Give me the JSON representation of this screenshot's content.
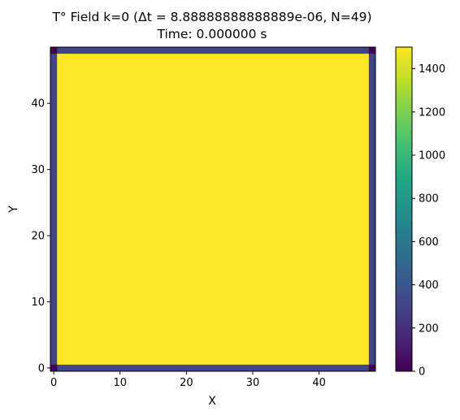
{
  "chart_data": {
    "type": "heatmap",
    "title": "T° Field k=0 (Δt = 8.88888888888889e-06, N=49)",
    "subtitle": "Time: 0.000000 s",
    "xlabel": "X",
    "ylabel": "Y",
    "grid": false,
    "colormap": "viridis",
    "grid_size": [
      49,
      49
    ],
    "xlim": [
      -0.5,
      48.5
    ],
    "ylim": [
      -0.5,
      48.5
    ],
    "x_ticks": [
      0,
      10,
      20,
      30,
      40
    ],
    "y_ticks": [
      0,
      10,
      20,
      30,
      40
    ],
    "color_range": [
      0,
      1500
    ],
    "colorbar_ticks": [
      0,
      200,
      400,
      600,
      800,
      1000,
      1200,
      1400
    ],
    "regions": [
      {
        "name": "interior",
        "x_range": [
          1,
          47
        ],
        "y_range": [
          1,
          47
        ],
        "value": 1500
      },
      {
        "name": "boundary-edges",
        "value": 300
      },
      {
        "name": "corners",
        "cells": [
          [
            0,
            0
          ],
          [
            0,
            48
          ],
          [
            48,
            0
          ],
          [
            48,
            48
          ]
        ],
        "value": 0
      }
    ]
  }
}
